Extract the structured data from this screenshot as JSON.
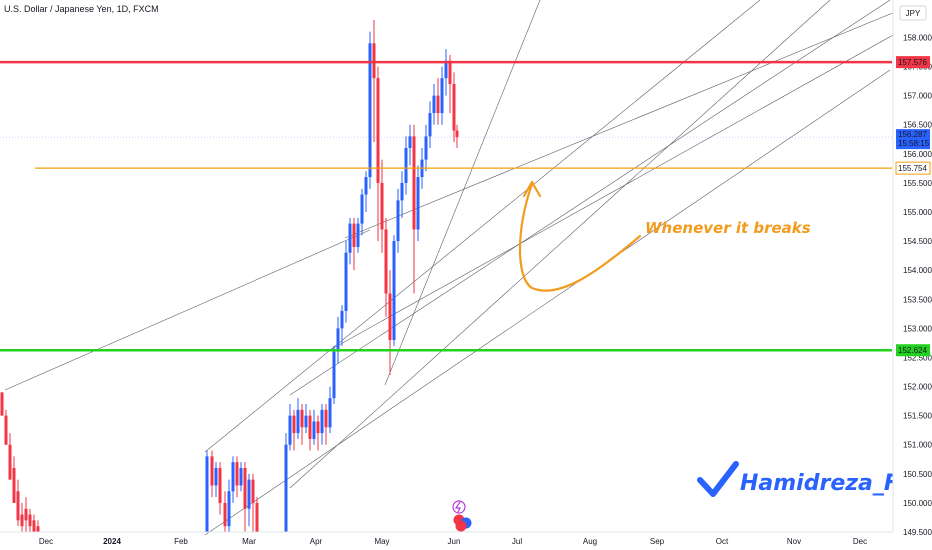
{
  "chart_data": {
    "type": "candlestick",
    "title": "U.S. Dollar / Japanese Yen, 1D, FXCM",
    "currency": "JPY",
    "x_ticks": [
      "Dec",
      "2024",
      "Feb",
      "Mar",
      "Apr",
      "May",
      "Jun",
      "Jul",
      "Aug",
      "Sep",
      "Oct",
      "Nov",
      "Dec"
    ],
    "y_ticks": [
      "149.500",
      "150.000",
      "150.500",
      "151.000",
      "151.500",
      "152.000",
      "152.500",
      "153.000",
      "153.500",
      "154.000",
      "154.500",
      "155.000",
      "155.500",
      "156.000",
      "156.500",
      "157.000",
      "157.500",
      "158.000"
    ],
    "ylim": [
      149.5,
      158.3
    ],
    "levels": [
      {
        "label": "157.576",
        "value": 157.576,
        "color": "#f23645"
      },
      {
        "label": "152.624",
        "value": 152.624,
        "color": "#22d21f"
      },
      {
        "label": "155.754",
        "value": 155.754,
        "color": "#f59e0b"
      }
    ],
    "last_price": {
      "value": 156.287,
      "label": "156.287",
      "countdown": "15:58:15",
      "color": "#2962ff"
    },
    "annotation": "Whenever it breaks",
    "watermark": "Hamidreza_FX",
    "up_color": "#2962ff",
    "down_color": "#f23645"
  }
}
